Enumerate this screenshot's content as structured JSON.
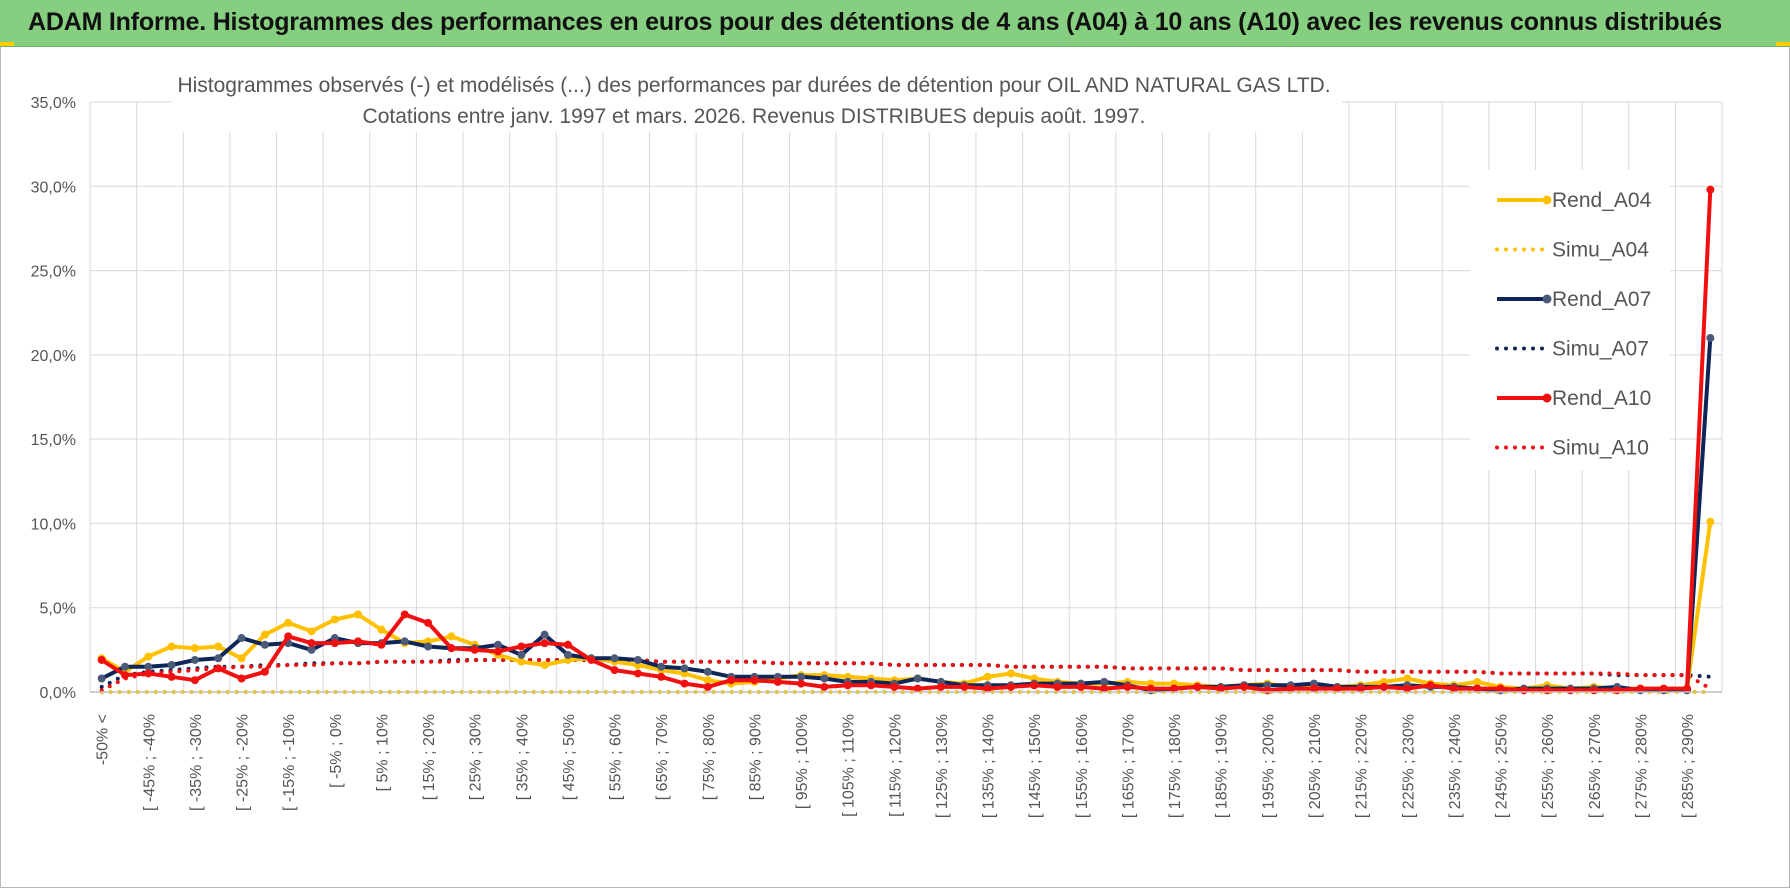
{
  "banner": {
    "title": "ADAM Informe. Histogrammes des performances en euros pour des détentions de 4 ans (A04) à 10 ans (A10) avec les revenus connus distribués"
  },
  "colors": {
    "A04": "#ffc000",
    "A07": "#0d2557",
    "A10": "#f01010",
    "banner": "#86cf80",
    "grid": "#d9d9d9"
  },
  "chart_data": {
    "type": "line",
    "title_line1": "Histogrammes observés (-) et modélisés (...) des performances par durées de détention pour OIL AND NATURAL GAS LTD.",
    "title_line2": "Cotations entre janv. 1997 et mars. 2026. Revenus DISTRIBUES depuis août. 1997.",
    "ylim": [
      0,
      35
    ],
    "yticks": [
      "0,0%",
      "5,0%",
      "10,0%",
      "15,0%",
      "20,0%",
      "25,0%",
      "30,0%",
      "35,0%"
    ],
    "xlabels_top": [
      "-50% <",
      "[ -45% ; -40%",
      "[ -35% ; -30%",
      "[ -25% ; -20%",
      "[ -15% ; -10%",
      "[ -5% ; 0%",
      "[ 5% ; 10%",
      "[ 15% ; 20%",
      "[ 25% ; 30%",
      "[ 35% ; 40%",
      "[ 45% ; 50%",
      "[ 55% ; 60%",
      "[ 65% ; 70%",
      "[ 75% ; 80%",
      "[ 85% ; 90%",
      "[ 95% ; 100%",
      "[ 105% ; 110%",
      "[ 115% ; 120%",
      "[ 125% ; 130%",
      "[ 135% ; 140%",
      "[ 145% ; 150%",
      "[ 155% ; 160%",
      "[ 165% ; 170%",
      "[ 175% ; 180%",
      "[ 185% ; 190%",
      "[ 195% ; 200%",
      "[ 205% ; 210%",
      "[ 215% ; 220%",
      "[ 225% ; 230%",
      "[ 235% ; 240%",
      "[ 245% ; 250%",
      "[ 255% ; 260%",
      "[ 265% ; 270%",
      "[ 275% ; 280%",
      "[ 285% ; 290%"
    ],
    "n_points": 70,
    "series": [
      {
        "name": "Rend_A04",
        "key": "A04",
        "style": "solid",
        "values": [
          2.0,
          1.2,
          2.1,
          2.7,
          2.6,
          2.7,
          2.0,
          3.4,
          4.1,
          3.6,
          4.3,
          4.6,
          3.7,
          2.9,
          3.0,
          3.3,
          2.8,
          2.2,
          1.8,
          1.6,
          1.9,
          2.0,
          1.8,
          1.6,
          1.3,
          1.1,
          0.7,
          0.5,
          0.6,
          0.8,
          1.0,
          1.0,
          0.9,
          0.8,
          0.7,
          0.8,
          0.6,
          0.5,
          0.9,
          1.1,
          0.8,
          0.6,
          0.5,
          0.5,
          0.6,
          0.5,
          0.5,
          0.4,
          0.3,
          0.4,
          0.5,
          0.3,
          0.3,
          0.3,
          0.4,
          0.6,
          0.8,
          0.5,
          0.4,
          0.6,
          0.3,
          0.2,
          0.4,
          0.2,
          0.3,
          0.2,
          0.2,
          0.2,
          0.2,
          10.1
        ]
      },
      {
        "name": "Simu_A04",
        "key": "A04",
        "style": "dotted",
        "values": [
          0,
          0,
          0,
          0,
          0,
          0,
          0,
          0,
          0,
          0,
          0,
          0,
          0,
          0,
          0,
          0,
          0,
          0,
          0,
          0,
          0,
          0,
          0,
          0,
          0,
          0,
          0,
          0,
          0,
          0,
          0,
          0,
          0,
          0,
          0,
          0,
          0,
          0,
          0,
          0,
          0,
          0,
          0,
          0,
          0,
          0,
          0,
          0,
          0,
          0,
          0,
          0,
          0,
          0,
          0,
          0,
          0,
          0,
          0,
          0,
          0,
          0,
          0,
          0,
          0,
          0,
          0,
          0,
          0,
          0
        ]
      },
      {
        "name": "Rend_A07",
        "key": "A07",
        "style": "solid",
        "values": [
          0.8,
          1.5,
          1.5,
          1.6,
          1.9,
          2.0,
          3.2,
          2.8,
          2.9,
          2.5,
          3.2,
          2.9,
          2.9,
          3.0,
          2.7,
          2.6,
          2.6,
          2.8,
          2.2,
          3.4,
          2.2,
          2.0,
          2.0,
          1.9,
          1.5,
          1.4,
          1.2,
          0.9,
          0.9,
          0.9,
          0.9,
          0.8,
          0.6,
          0.6,
          0.5,
          0.8,
          0.6,
          0.4,
          0.4,
          0.4,
          0.5,
          0.5,
          0.5,
          0.6,
          0.4,
          0.1,
          0.2,
          0.3,
          0.3,
          0.4,
          0.4,
          0.4,
          0.5,
          0.3,
          0.3,
          0.3,
          0.4,
          0.3,
          0.3,
          0.2,
          0.1,
          0.2,
          0.2,
          0.2,
          0.2,
          0.3,
          0.1,
          0.1,
          0.1,
          21.0
        ]
      },
      {
        "name": "Simu_A07",
        "key": "A07",
        "style": "dotted",
        "values": [
          0.3,
          1.0,
          1.2,
          1.3,
          1.4,
          1.5,
          1.5,
          1.6,
          1.6,
          1.7,
          1.7,
          1.7,
          1.8,
          1.8,
          1.8,
          1.9,
          1.9,
          1.9,
          1.9,
          1.9,
          1.9,
          1.9,
          1.9,
          1.9,
          1.8,
          1.8,
          1.8,
          1.8,
          1.8,
          1.7,
          1.7,
          1.7,
          1.7,
          1.7,
          1.6,
          1.6,
          1.6,
          1.6,
          1.6,
          1.5,
          1.5,
          1.5,
          1.5,
          1.5,
          1.4,
          1.4,
          1.4,
          1.4,
          1.4,
          1.3,
          1.3,
          1.3,
          1.3,
          1.3,
          1.2,
          1.2,
          1.2,
          1.2,
          1.2,
          1.2,
          1.1,
          1.1,
          1.1,
          1.1,
          1.1,
          1.0,
          1.0,
          1.0,
          1.0,
          0.9
        ]
      },
      {
        "name": "Rend_A10",
        "key": "A10",
        "style": "solid",
        "values": [
          1.9,
          1.0,
          1.1,
          0.9,
          0.7,
          1.4,
          0.8,
          1.2,
          3.3,
          2.9,
          2.9,
          3.0,
          2.8,
          4.6,
          4.1,
          2.6,
          2.5,
          2.4,
          2.7,
          2.9,
          2.8,
          1.9,
          1.3,
          1.1,
          0.9,
          0.5,
          0.3,
          0.7,
          0.7,
          0.6,
          0.5,
          0.3,
          0.4,
          0.4,
          0.3,
          0.2,
          0.3,
          0.3,
          0.2,
          0.3,
          0.4,
          0.3,
          0.3,
          0.2,
          0.3,
          0.2,
          0.2,
          0.3,
          0.2,
          0.3,
          0.1,
          0.2,
          0.2,
          0.2,
          0.2,
          0.3,
          0.2,
          0.4,
          0.2,
          0.2,
          0.2,
          0.1,
          0.1,
          0.1,
          0.1,
          0.1,
          0.2,
          0.2,
          0.2,
          29.8
        ]
      },
      {
        "name": "Simu_A10",
        "key": "A10",
        "style": "dotted",
        "values": [
          0.1,
          0.8,
          1.1,
          1.2,
          1.3,
          1.4,
          1.5,
          1.5,
          1.6,
          1.6,
          1.7,
          1.7,
          1.8,
          1.8,
          1.8,
          1.8,
          1.9,
          1.9,
          1.9,
          1.9,
          1.9,
          1.9,
          1.9,
          1.9,
          1.8,
          1.8,
          1.8,
          1.8,
          1.8,
          1.7,
          1.7,
          1.7,
          1.7,
          1.7,
          1.6,
          1.6,
          1.6,
          1.6,
          1.6,
          1.5,
          1.5,
          1.5,
          1.5,
          1.5,
          1.4,
          1.4,
          1.4,
          1.4,
          1.4,
          1.3,
          1.3,
          1.3,
          1.3,
          1.3,
          1.2,
          1.2,
          1.2,
          1.2,
          1.2,
          1.2,
          1.1,
          1.1,
          1.1,
          1.1,
          1.1,
          1.1,
          1.0,
          1.0,
          1.0,
          0.2
        ]
      }
    ],
    "legend_position": "right"
  }
}
